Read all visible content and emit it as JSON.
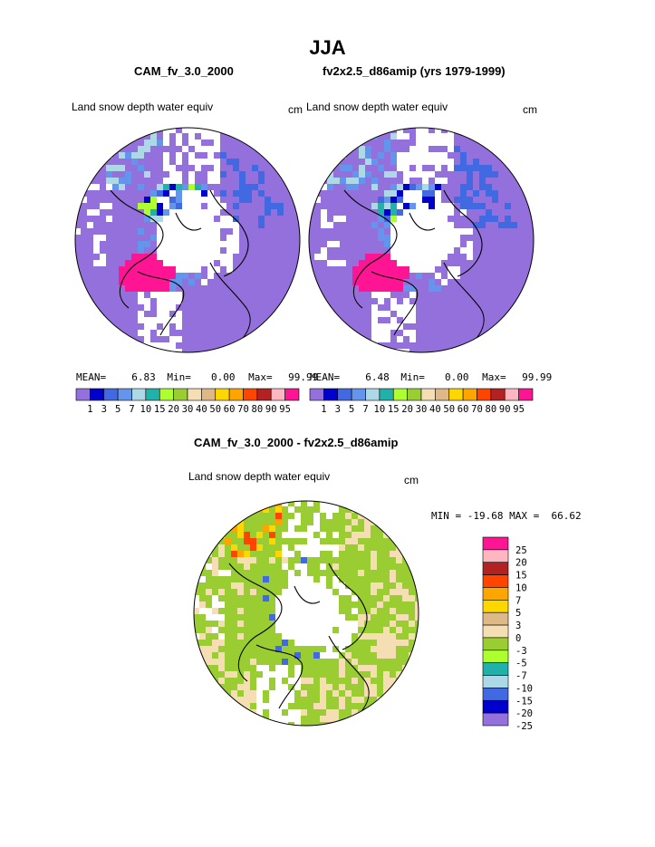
{
  "page": {
    "title": "JJA",
    "panel1": {
      "title": "CAM_fv_3.0_2000",
      "variable": "Land snow depth water equiv",
      "units": "cm",
      "mean_label": "MEAN=",
      "mean": "6.83",
      "min_label": "Min=",
      "min": "0.00",
      "max_label": "Max=",
      "max": "99.99"
    },
    "panel2": {
      "title": "fv2x2.5_d86amip (yrs 1979-1999)",
      "variable": "Land snow depth water equiv",
      "units": "cm",
      "mean_label": "MEAN=",
      "mean": "6.48",
      "min_label": "Min=",
      "min": "0.00",
      "max_label": "Max=",
      "max": "99.99"
    },
    "panel3": {
      "title": "CAM_fv_3.0_2000 - fv2x2.5_d86amip",
      "variable": "Land snow depth water equiv",
      "units": "cm",
      "minmax": "MIN = -19.68 MAX =  66.62"
    }
  },
  "chart_data": [
    {
      "type": "heatmap",
      "projection": "polar-stereographic-north",
      "title": "CAM_fv_3.0_2000",
      "variable": "Land snow depth water equiv",
      "units": "cm",
      "mean": 6.83,
      "min": 0.0,
      "max": 99.99,
      "colorbar": {
        "orientation": "horizontal",
        "levels": [
          "1",
          "3",
          "5",
          "7",
          "10",
          "15",
          "20",
          "30",
          "40",
          "50",
          "60",
          "70",
          "80",
          "90",
          "95"
        ],
        "colors": [
          "#9370db",
          "#0000cd",
          "#4169e1",
          "#6495ed",
          "#add8e6",
          "#20b2aa",
          "#adff2f",
          "#9acd32",
          "#f5deb3",
          "#deb887",
          "#ffd700",
          "#ffa500",
          "#ff4500",
          "#b22222",
          "#ffb6c1",
          "#ff1493"
        ]
      }
    },
    {
      "type": "heatmap",
      "projection": "polar-stereographic-north",
      "title": "fv2x2.5_d86amip (yrs 1979-1999)",
      "variable": "Land snow depth water equiv",
      "units": "cm",
      "mean": 6.48,
      "min": 0.0,
      "max": 99.99,
      "colorbar": {
        "orientation": "horizontal",
        "levels": [
          "1",
          "3",
          "5",
          "7",
          "10",
          "15",
          "20",
          "30",
          "40",
          "50",
          "60",
          "70",
          "80",
          "90",
          "95"
        ],
        "colors": [
          "#9370db",
          "#0000cd",
          "#4169e1",
          "#6495ed",
          "#add8e6",
          "#20b2aa",
          "#adff2f",
          "#9acd32",
          "#f5deb3",
          "#deb887",
          "#ffd700",
          "#ffa500",
          "#ff4500",
          "#b22222",
          "#ffb6c1",
          "#ff1493"
        ]
      }
    },
    {
      "type": "heatmap",
      "projection": "polar-stereographic-north",
      "title": "CAM_fv_3.0_2000 - fv2x2.5_d86amip",
      "variable": "Land snow depth water equiv",
      "units": "cm",
      "min": -19.68,
      "max": 66.62,
      "colorbar": {
        "orientation": "vertical",
        "levels": [
          "25",
          "20",
          "15",
          "10",
          "7",
          "5",
          "3",
          "0",
          "-3",
          "-5",
          "-7",
          "-10",
          "-15",
          "-20",
          "-25"
        ],
        "colors": [
          "#ff1493",
          "#ffb6c1",
          "#b22222",
          "#ff4500",
          "#ffa500",
          "#ffd700",
          "#deb887",
          "#f5deb3",
          "#9acd32",
          "#adff2f",
          "#20b2aa",
          "#add8e6",
          "#4169e1",
          "#0000cd",
          "#9370db"
        ]
      }
    }
  ]
}
